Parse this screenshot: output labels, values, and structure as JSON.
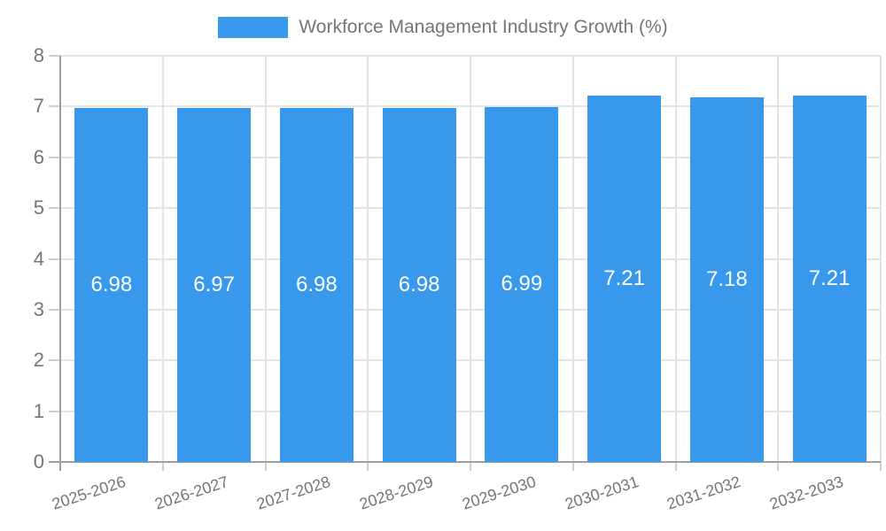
{
  "chart_data": {
    "type": "bar",
    "title": "Workforce Management Industry Growth (%)",
    "legend_position": "top",
    "categories": [
      "2025-2026",
      "2026-2027",
      "2027-2028",
      "2028-2029",
      "2029-2030",
      "2030-2031",
      "2031-2032",
      "2032-2033"
    ],
    "series": [
      {
        "name": "Workforce Management Industry Growth (%)",
        "values": [
          6.98,
          6.97,
          6.98,
          6.98,
          6.99,
          7.21,
          7.18,
          7.21
        ],
        "value_labels": [
          "6.98",
          "6.97",
          "6.98",
          "6.98",
          "6.99",
          "7.21",
          "7.18",
          "7.21"
        ]
      }
    ],
    "xlabel": "",
    "ylabel": "",
    "ylim": [
      0,
      8
    ],
    "ytick_step": 1,
    "ytick_labels": [
      "0",
      "1",
      "2",
      "3",
      "4",
      "5",
      "6",
      "7",
      "8"
    ],
    "grid": true,
    "x_label_rotation_deg": -18,
    "colors": {
      "bar": "#3899EC",
      "grid": "#E3E3E3",
      "axis": "#9E9E9E",
      "tick": "#CFCFCF",
      "text": "#757575",
      "value_text": "#FFFFFF"
    }
  }
}
